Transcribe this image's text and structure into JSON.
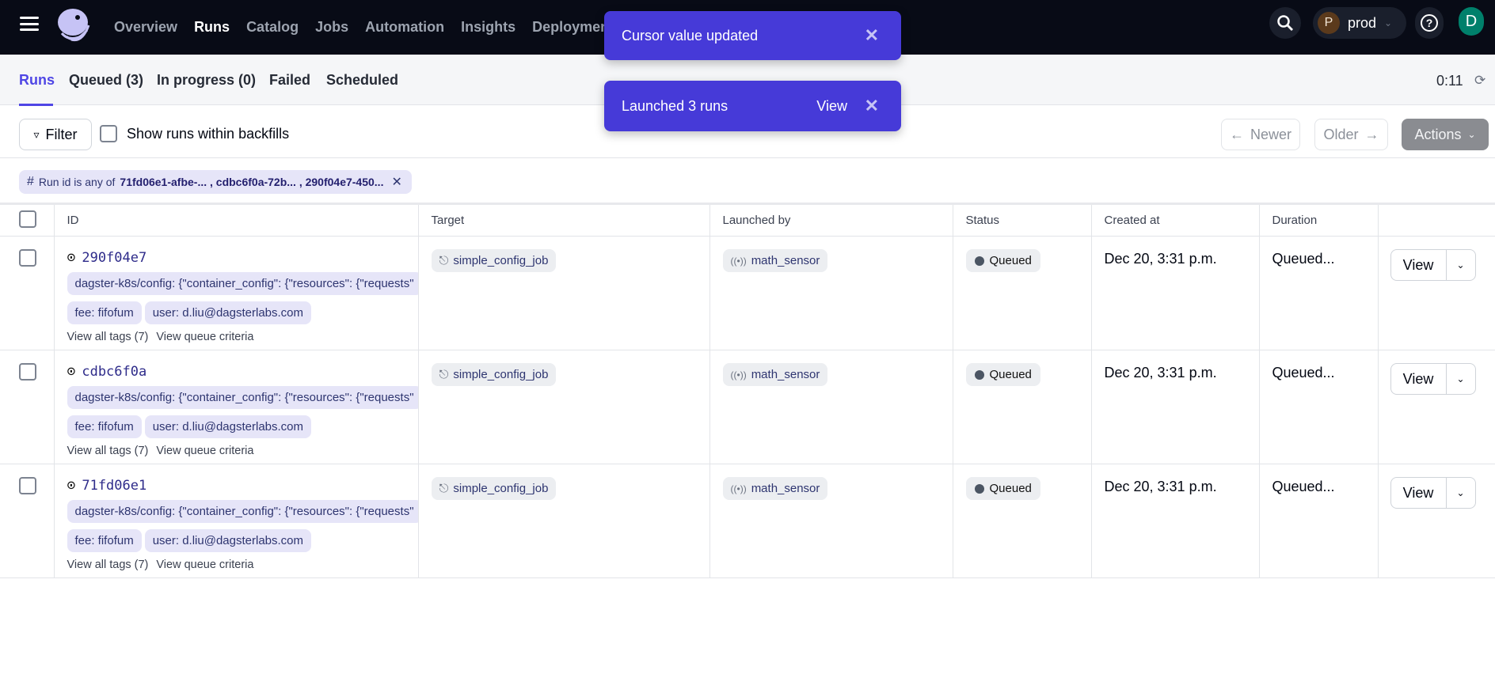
{
  "topbar": {
    "nav": [
      "Overview",
      "Runs",
      "Catalog",
      "Jobs",
      "Automation",
      "Insights",
      "Deployment"
    ],
    "active_nav": "Runs",
    "deployment": {
      "avatar": "P",
      "name": "prod"
    },
    "user_avatar": "D"
  },
  "tabs": {
    "items": [
      "Runs",
      "Queued (3)",
      "In progress (0)",
      "Failed",
      "Scheduled"
    ],
    "timer": "0:11"
  },
  "toolbar": {
    "filter": "Filter",
    "backfills": "Show runs within backfills",
    "newer": "Newer",
    "older": "Older",
    "actions": "Actions"
  },
  "filter_chip": {
    "prefix": "Run id is any of",
    "values": "71fd06e1-afbe-... , cdbc6f0a-72b...  , 290f04e7-450..."
  },
  "table": {
    "headers": [
      "ID",
      "Target",
      "Launched by",
      "Status",
      "Created at",
      "Duration"
    ],
    "rows": [
      {
        "id": "290f04e7",
        "tag_config": "dagster-k8s/config: {\"container_config\": {\"resources\": {\"requests\"",
        "tag_fee": "fee: fifofum",
        "tag_user": "user: d.liu@dagsterlabs.com",
        "view_tags": "View all tags (7)",
        "view_queue": "View queue criteria",
        "target": "simple_config_job",
        "launched_by": "math_sensor",
        "status": "Queued",
        "created": "Dec 20, 3:31 p.m.",
        "duration": "Queued...",
        "view": "View"
      },
      {
        "id": "cdbc6f0a",
        "tag_config": "dagster-k8s/config: {\"container_config\": {\"resources\": {\"requests\"",
        "tag_fee": "fee: fifofum",
        "tag_user": "user: d.liu@dagsterlabs.com",
        "view_tags": "View all tags (7)",
        "view_queue": "View queue criteria",
        "target": "simple_config_job",
        "launched_by": "math_sensor",
        "status": "Queued",
        "created": "Dec 20, 3:31 p.m.",
        "duration": "Queued...",
        "view": "View"
      },
      {
        "id": "71fd06e1",
        "tag_config": "dagster-k8s/config: {\"container_config\": {\"resources\": {\"requests\"",
        "tag_fee": "fee: fifofum",
        "tag_user": "user: d.liu@dagsterlabs.com",
        "view_tags": "View all tags (7)",
        "view_queue": "View queue criteria",
        "target": "simple_config_job",
        "launched_by": "math_sensor",
        "status": "Queued",
        "created": "Dec 20, 3:31 p.m.",
        "duration": "Queued...",
        "view": "View"
      }
    ]
  },
  "toasts": [
    {
      "message": "Cursor value updated"
    },
    {
      "message": "Launched 3 runs",
      "action": "View"
    }
  ],
  "colors": {
    "accent": "#4f46e5",
    "toast": "#463ad8",
    "topbar": "#080b16",
    "tag_bg": "#e6e5f8"
  }
}
